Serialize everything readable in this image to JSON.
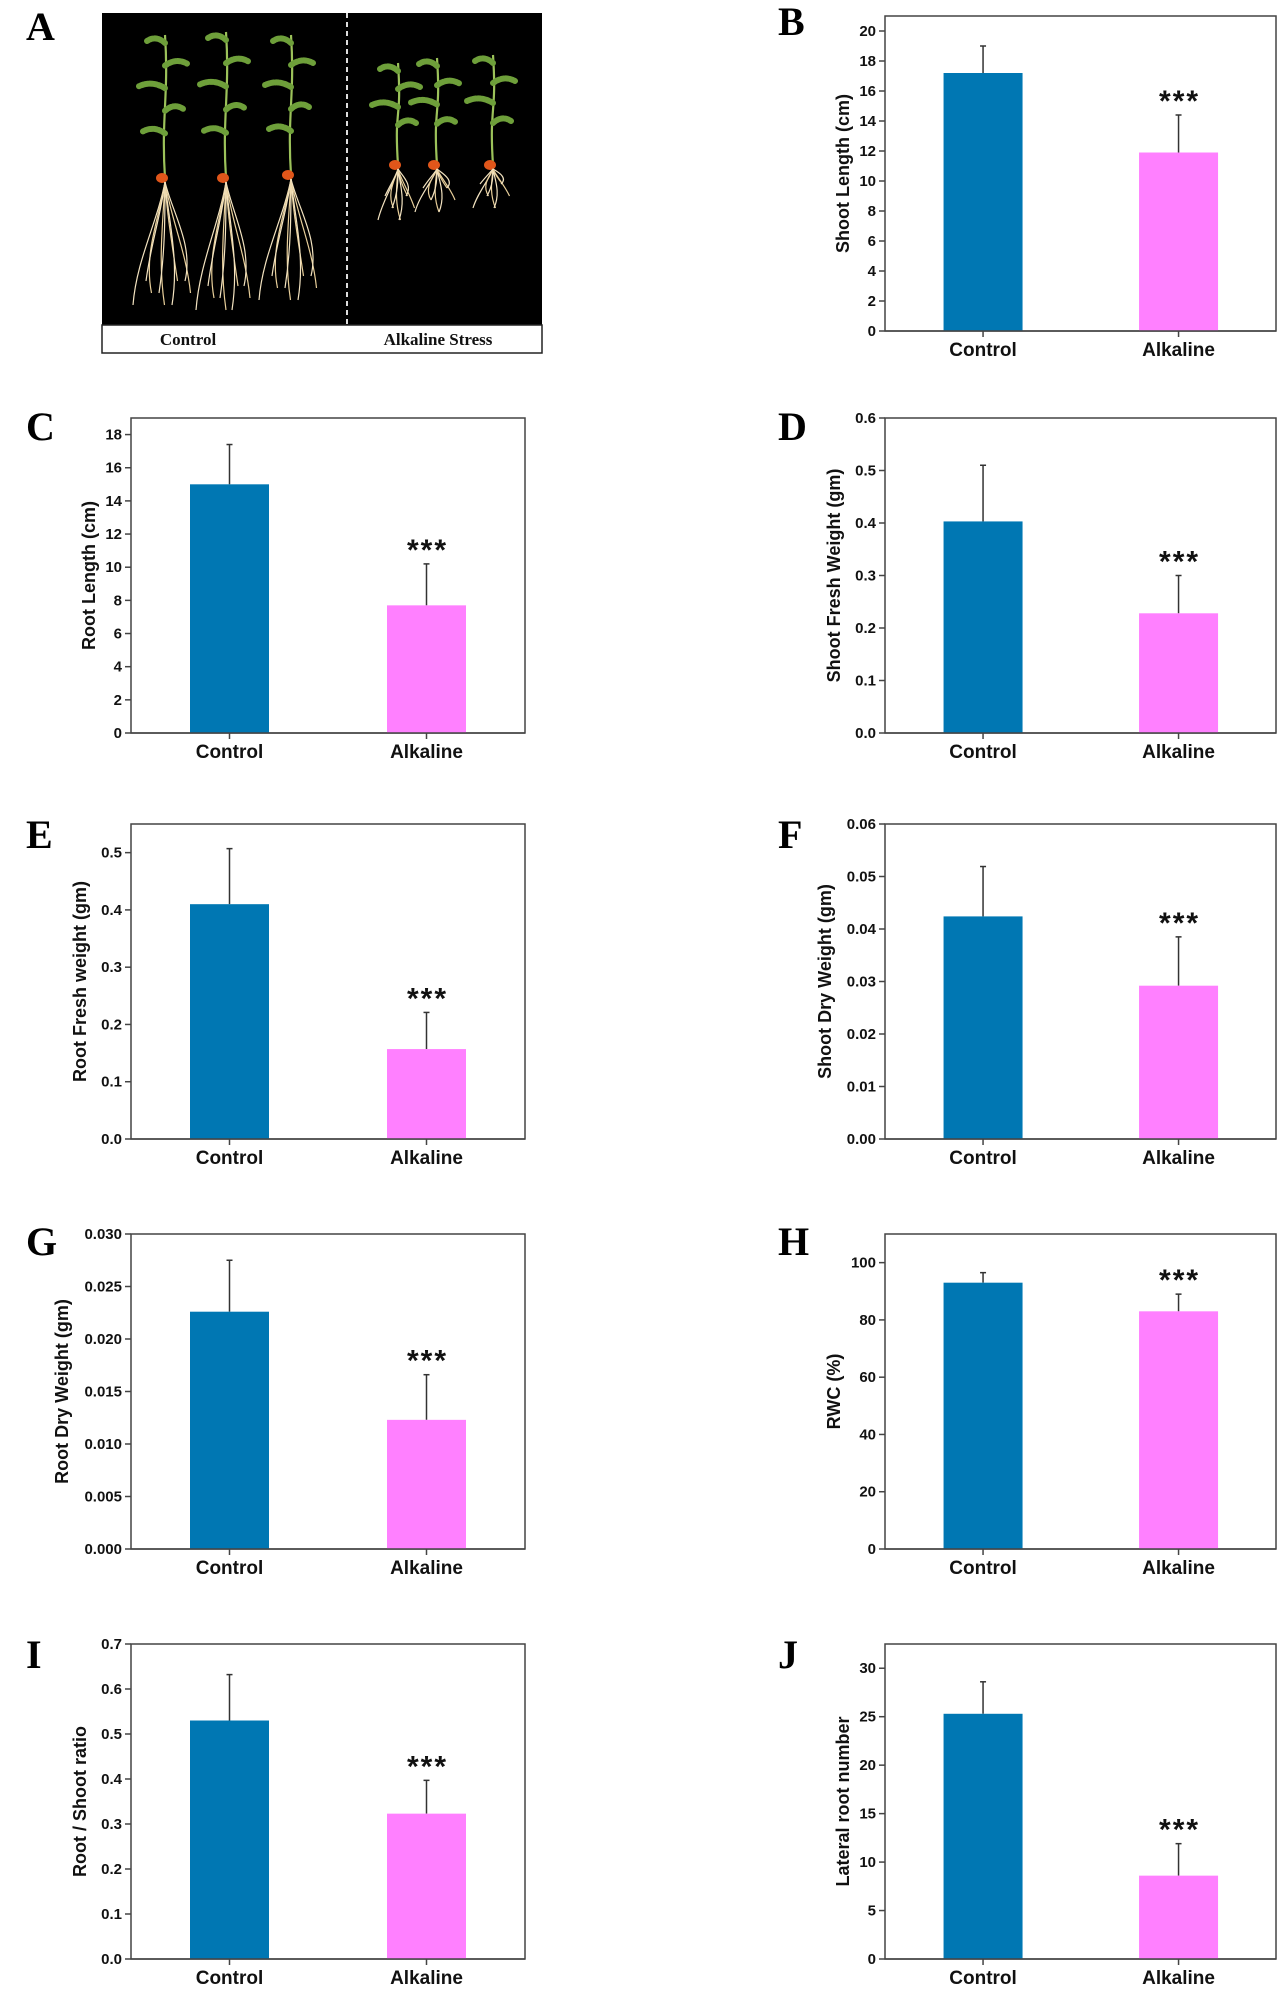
{
  "figure": {
    "photo_panel": {
      "letter": "A",
      "caption_left": "Control",
      "caption_right": "Alkaline Stress",
      "background": "#000000"
    },
    "colors": {
      "control": "#0077B3",
      "alkaline": "#FF80FF",
      "axis": "#444444"
    }
  },
  "chart_data": [
    {
      "panel": "B",
      "type": "bar",
      "title": "",
      "categories": [
        "Control",
        "Alkaline"
      ],
      "values": [
        17.2,
        11.9
      ],
      "error_upper": [
        19.0,
        14.4
      ],
      "significance": [
        "",
        "***"
      ],
      "xlabel": "",
      "ylabel": "Shoot Length (cm)",
      "ylim": [
        0,
        21
      ],
      "yticks": [
        0,
        2,
        4,
        6,
        8,
        10,
        12,
        14,
        16,
        18,
        20
      ],
      "ytick_labels": [
        "0",
        "2",
        "4",
        "6",
        "8",
        "10",
        "12",
        "14",
        "16",
        "18",
        "20"
      ],
      "grid": false,
      "legend": "none"
    },
    {
      "panel": "C",
      "type": "bar",
      "title": "",
      "categories": [
        "Control",
        "Alkaline"
      ],
      "values": [
        15.0,
        7.7
      ],
      "error_upper": [
        17.4,
        10.2
      ],
      "significance": [
        "",
        "***"
      ],
      "xlabel": "",
      "ylabel": "Root Length (cm)",
      "ylim": [
        0,
        19
      ],
      "yticks": [
        0,
        2,
        4,
        6,
        8,
        10,
        12,
        14,
        16,
        18
      ],
      "ytick_labels": [
        "0",
        "2",
        "4",
        "6",
        "8",
        "10",
        "12",
        "14",
        "16",
        "18"
      ],
      "grid": false,
      "legend": "none"
    },
    {
      "panel": "D",
      "type": "bar",
      "title": "",
      "categories": [
        "Control",
        "Alkaline"
      ],
      "values": [
        0.403,
        0.228
      ],
      "error_upper": [
        0.51,
        0.3
      ],
      "significance": [
        "",
        "***"
      ],
      "xlabel": "",
      "ylabel": "Shoot Fresh Weight (gm)",
      "ylim": [
        0,
        0.6
      ],
      "yticks": [
        0,
        0.1,
        0.2,
        0.3,
        0.4,
        0.5,
        0.6
      ],
      "ytick_labels": [
        "0.0",
        "0.1",
        "0.2",
        "0.3",
        "0.4",
        "0.5",
        "0.6"
      ],
      "grid": false,
      "legend": "none"
    },
    {
      "panel": "E",
      "type": "bar",
      "title": "",
      "categories": [
        "Control",
        "Alkaline"
      ],
      "values": [
        0.41,
        0.157
      ],
      "error_upper": [
        0.507,
        0.221
      ],
      "significance": [
        "",
        "***"
      ],
      "xlabel": "",
      "ylabel": "Root Fresh weight (gm)",
      "ylim": [
        0,
        0.55
      ],
      "yticks": [
        0,
        0.1,
        0.2,
        0.3,
        0.4,
        0.5
      ],
      "ytick_labels": [
        "0.0",
        "0.1",
        "0.2",
        "0.3",
        "0.4",
        "0.5"
      ],
      "grid": false,
      "legend": "none"
    },
    {
      "panel": "F",
      "type": "bar",
      "title": "",
      "categories": [
        "Control",
        "Alkaline"
      ],
      "values": [
        0.0424,
        0.0292
      ],
      "error_upper": [
        0.0519,
        0.0385
      ],
      "significance": [
        "",
        "***"
      ],
      "xlabel": "",
      "ylabel": "Shoot Dry Weight (gm)",
      "ylim": [
        0,
        0.06
      ],
      "yticks": [
        0,
        0.01,
        0.02,
        0.03,
        0.04,
        0.05,
        0.06
      ],
      "ytick_labels": [
        "0.00",
        "0.01",
        "0.02",
        "0.03",
        "0.04",
        "0.05",
        "0.06"
      ],
      "grid": false,
      "legend": "none"
    },
    {
      "panel": "G",
      "type": "bar",
      "title": "",
      "categories": [
        "Control",
        "Alkaline"
      ],
      "values": [
        0.0226,
        0.0123
      ],
      "error_upper": [
        0.0275,
        0.0166
      ],
      "significance": [
        "",
        "***"
      ],
      "xlabel": "",
      "ylabel": "Root Dry Weight (gm)",
      "ylim": [
        0,
        0.03
      ],
      "yticks": [
        0,
        0.005,
        0.01,
        0.015,
        0.02,
        0.025,
        0.03
      ],
      "ytick_labels": [
        "0.000",
        "0.005",
        "0.010",
        "0.015",
        "0.020",
        "0.025",
        "0.030"
      ],
      "grid": false,
      "legend": "none"
    },
    {
      "panel": "H",
      "type": "bar",
      "title": "",
      "categories": [
        "Control",
        "Alkaline"
      ],
      "values": [
        93,
        83
      ],
      "error_upper": [
        96.5,
        89
      ],
      "significance": [
        "",
        "***"
      ],
      "xlabel": "",
      "ylabel": "RWC (%)",
      "ylim": [
        0,
        110
      ],
      "yticks": [
        0,
        20,
        40,
        60,
        80,
        100
      ],
      "ytick_labels": [
        "0",
        "20",
        "40",
        "60",
        "80",
        "100"
      ],
      "grid": false,
      "legend": "none"
    },
    {
      "panel": "I",
      "type": "bar",
      "title": "",
      "categories": [
        "Control",
        "Alkaline"
      ],
      "values": [
        0.53,
        0.323
      ],
      "error_upper": [
        0.632,
        0.397
      ],
      "significance": [
        "",
        "***"
      ],
      "xlabel": "",
      "ylabel": "Root / Shoot ratio",
      "ylim": [
        0,
        0.7
      ],
      "yticks": [
        0,
        0.1,
        0.2,
        0.3,
        0.4,
        0.5,
        0.6,
        0.7
      ],
      "ytick_labels": [
        "0.0",
        "0.1",
        "0.2",
        "0.3",
        "0.4",
        "0.5",
        "0.6",
        "0.7"
      ],
      "grid": false,
      "legend": "none"
    },
    {
      "panel": "J",
      "type": "bar",
      "title": "",
      "categories": [
        "Control",
        "Alkaline"
      ],
      "values": [
        25.3,
        8.6
      ],
      "error_upper": [
        28.6,
        11.9
      ],
      "significance": [
        "",
        "***"
      ],
      "xlabel": "",
      "ylabel": "Lateral root number",
      "ylim": [
        0,
        32.5
      ],
      "yticks": [
        0,
        5,
        10,
        15,
        20,
        25,
        30
      ],
      "ytick_labels": [
        "0",
        "5",
        "10",
        "15",
        "20",
        "25",
        "30"
      ],
      "grid": false,
      "legend": "none"
    }
  ]
}
